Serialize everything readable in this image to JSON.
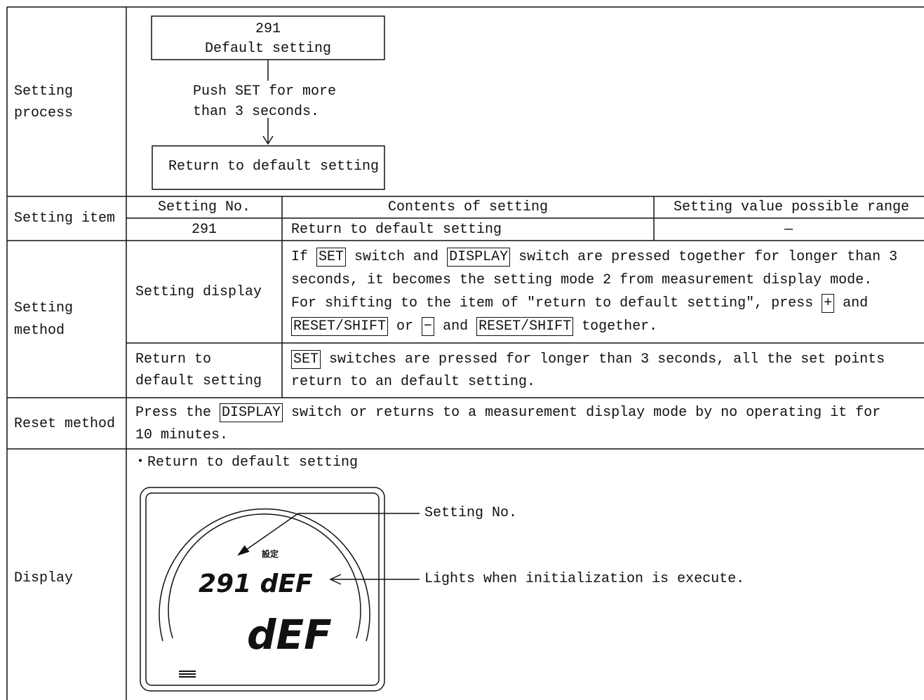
{
  "setting_process": {
    "label": [
      "Setting",
      "process"
    ],
    "box1": [
      "291",
      "Default setting"
    ],
    "instruction": [
      "Push SET for more",
      "than 3 seconds."
    ],
    "box2": "Return to default setting"
  },
  "setting_item": {
    "label": "Setting item",
    "headers": [
      "Setting No.",
      "Contents of setting",
      "Setting value possible range"
    ],
    "row": [
      "291",
      "Return to default setting",
      "—"
    ]
  },
  "setting_method": {
    "label": [
      "Setting",
      "method"
    ],
    "rows": [
      {
        "label": [
          "Setting display"
        ],
        "lines": [
          [
            "If ",
            {
              "key": "SET"
            },
            " switch and ",
            {
              "key": "DISPLAY"
            },
            " switch are pressed together for longer than 3"
          ],
          [
            "seconds, it becomes the setting mode 2 from measurement display mode."
          ],
          [
            "For shifting to the item of ″return to default setting″, press ",
            {
              "key": "+"
            },
            " and"
          ],
          [
            {
              "key": "RESET/SHIFT"
            },
            " or ",
            {
              "key": "−"
            },
            " and ",
            {
              "key": "RESET/SHIFT"
            },
            " together."
          ]
        ]
      },
      {
        "label": [
          "Return to",
          "default setting"
        ],
        "lines": [
          [
            {
              "key": "SET"
            },
            " switches are pressed for longer than 3 seconds, all the set points"
          ],
          [
            "return to an default setting."
          ]
        ]
      }
    ]
  },
  "reset_method": {
    "label": "Reset method",
    "lines": [
      [
        "Press the ",
        {
          "key": "DISPLAY"
        },
        " switch or returns to a measurement display mode by no operating it for"
      ],
      [
        "10 minutes."
      ]
    ]
  },
  "display": {
    "label": "Display",
    "caption": "・Return to default setting",
    "lcd": {
      "small_label": "設定",
      "sub": "291 dEF",
      "main": "dEF"
    },
    "callouts": [
      "Setting No.",
      "Lights when initialization is execute."
    ]
  }
}
